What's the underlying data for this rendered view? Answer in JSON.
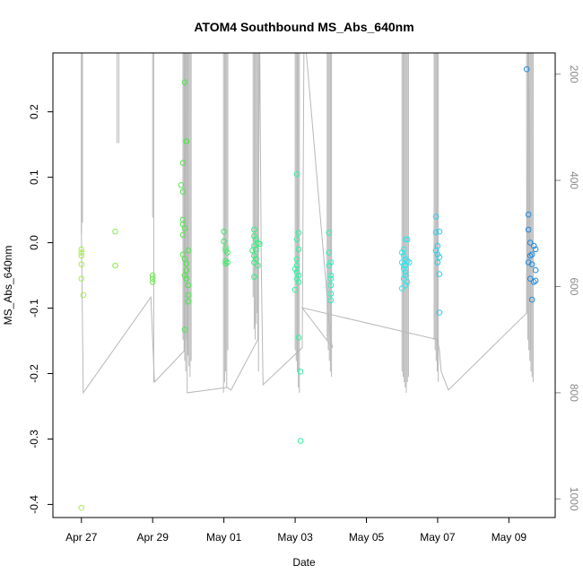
{
  "chart_data": {
    "type": "scatter",
    "title": "ATOM4 Southbound MS_Abs_640nm",
    "xlabel": "Date",
    "ylabel": "MS_Abs_640nm",
    "x_ticks": [
      "Apr 27",
      "Apr 29",
      "May 01",
      "May 03",
      "May 05",
      "May 07",
      "May 09"
    ],
    "x_tick_days": [
      0,
      2,
      4,
      6,
      8,
      10,
      12
    ],
    "xlim_days": [
      -0.8,
      13.3
    ],
    "ylim": [
      -0.42,
      0.29
    ],
    "y_ticks": [
      -0.4,
      -0.3,
      -0.2,
      -0.1,
      0.0,
      0.1,
      0.2
    ],
    "y_tick_labels": [
      "-0.4",
      "-0.3",
      "-0.2",
      "-0.1",
      "0.0",
      "0.1",
      "0.2"
    ],
    "y2_label": "",
    "y2lim": [
      1035,
      160
    ],
    "y2_ticks": [
      200,
      400,
      600,
      800,
      1000
    ],
    "y2_tick_labels": [
      "200",
      "400",
      "600",
      "800",
      "1000"
    ],
    "grid": false,
    "point_colors_by_day": [
      {
        "day": 0,
        "color": "#a6ee4e"
      },
      {
        "day": 3,
        "color": "#4ee34e"
      },
      {
        "day": 6,
        "color": "#2ef5a0"
      },
      {
        "day": 9,
        "color": "#2ee8f0"
      },
      {
        "day": 12.5,
        "color": "#1f8ae0"
      }
    ],
    "track_color": "#b8b8b8",
    "series": [
      {
        "points": [
          [
            0.0,
            -0.01
          ],
          [
            0.0,
            -0.015
          ],
          [
            0.0,
            -0.02
          ],
          [
            0.0,
            -0.033
          ],
          [
            0.0,
            -0.055
          ],
          [
            0.05,
            -0.08
          ],
          [
            0.0,
            -0.405
          ],
          [
            0.95,
            0.017
          ],
          [
            0.95,
            -0.035
          ],
          [
            2.0,
            -0.05
          ],
          [
            2.0,
            -0.055
          ],
          [
            2.0,
            -0.06
          ],
          [
            2.9,
            0.245
          ],
          [
            2.95,
            0.155
          ],
          [
            2.95,
            0.155
          ],
          [
            2.85,
            0.122
          ],
          [
            2.8,
            0.088
          ],
          [
            2.85,
            0.078
          ],
          [
            2.85,
            0.035
          ],
          [
            2.85,
            0.028
          ],
          [
            2.9,
            0.022
          ],
          [
            2.85,
            0.012
          ],
          [
            3.0,
            -0.012
          ],
          [
            2.85,
            -0.018
          ],
          [
            2.9,
            -0.025
          ],
          [
            2.95,
            -0.032
          ],
          [
            2.95,
            -0.042
          ],
          [
            2.9,
            -0.05
          ],
          [
            2.95,
            -0.055
          ],
          [
            3.0,
            -0.065
          ],
          [
            3.0,
            -0.08
          ],
          [
            3.0,
            -0.09
          ],
          [
            2.9,
            -0.133
          ],
          [
            4.0,
            0.017
          ],
          [
            4.0,
            0.002
          ],
          [
            4.05,
            -0.008
          ],
          [
            4.05,
            -0.012
          ],
          [
            4.1,
            -0.015
          ],
          [
            4.05,
            -0.028
          ],
          [
            4.05,
            -0.032
          ],
          [
            4.1,
            -0.03
          ],
          [
            4.85,
            0.02
          ],
          [
            4.85,
            0.01
          ],
          [
            4.9,
            0.005
          ],
          [
            4.95,
            0.0
          ],
          [
            5.0,
            -0.002
          ],
          [
            4.85,
            -0.005
          ],
          [
            4.9,
            -0.01
          ],
          [
            4.8,
            -0.012
          ],
          [
            4.85,
            -0.02
          ],
          [
            4.9,
            -0.025
          ],
          [
            4.85,
            -0.03
          ],
          [
            4.95,
            -0.035
          ],
          [
            4.85,
            -0.052
          ],
          [
            6.05,
            0.105
          ],
          [
            6.1,
            0.015
          ],
          [
            6.05,
            0.005
          ],
          [
            6.1,
            -0.01
          ],
          [
            6.05,
            -0.025
          ],
          [
            6.05,
            -0.035
          ],
          [
            6.0,
            -0.04
          ],
          [
            6.05,
            -0.045
          ],
          [
            6.1,
            -0.05
          ],
          [
            6.05,
            -0.055
          ],
          [
            6.1,
            -0.06
          ],
          [
            6.0,
            -0.072
          ],
          [
            6.1,
            -0.145
          ],
          [
            6.15,
            -0.197
          ],
          [
            6.15,
            -0.303
          ],
          [
            6.95,
            0.015
          ],
          [
            6.95,
            -0.015
          ],
          [
            7.0,
            -0.03
          ],
          [
            6.95,
            -0.035
          ],
          [
            7.0,
            -0.05
          ],
          [
            7.0,
            -0.055
          ],
          [
            7.0,
            -0.065
          ],
          [
            7.0,
            -0.078
          ],
          [
            7.0,
            -0.088
          ],
          [
            9.0,
            -0.015
          ],
          [
            9.05,
            -0.02
          ],
          [
            9.1,
            -0.025
          ],
          [
            9.0,
            -0.03
          ],
          [
            9.05,
            -0.035
          ],
          [
            9.05,
            -0.04
          ],
          [
            9.1,
            -0.045
          ],
          [
            9.1,
            -0.05
          ],
          [
            9.05,
            -0.055
          ],
          [
            9.15,
            -0.06
          ],
          [
            9.1,
            -0.065
          ],
          [
            9.0,
            -0.07
          ],
          [
            9.1,
            0.005
          ],
          [
            9.15,
            0.005
          ],
          [
            9.05,
            -0.01
          ],
          [
            9.15,
            -0.028
          ],
          [
            9.2,
            -0.03
          ],
          [
            9.1,
            -0.035
          ],
          [
            9.95,
            0.04
          ],
          [
            9.95,
            0.016
          ],
          [
            10.05,
            0.017
          ],
          [
            10.0,
            -0.005
          ],
          [
            9.95,
            -0.012
          ],
          [
            10.0,
            -0.018
          ],
          [
            10.05,
            -0.022
          ],
          [
            10.0,
            -0.03
          ],
          [
            10.05,
            -0.048
          ],
          [
            10.05,
            -0.107
          ],
          [
            12.5,
            0.265
          ],
          [
            12.55,
            0.043
          ],
          [
            12.55,
            0.02
          ],
          [
            12.6,
            0.0
          ],
          [
            12.7,
            -0.005
          ],
          [
            12.75,
            -0.01
          ],
          [
            12.65,
            -0.018
          ],
          [
            12.6,
            -0.02
          ],
          [
            12.55,
            -0.03
          ],
          [
            12.65,
            -0.033
          ],
          [
            12.75,
            -0.042
          ],
          [
            12.6,
            -0.055
          ],
          [
            12.7,
            -0.06
          ],
          [
            12.75,
            -0.058
          ],
          [
            12.65,
            -0.087
          ]
        ]
      },
      {
        "axis": "right",
        "track": [
          [
            0.0,
            125
          ],
          [
            0.0,
            500
          ],
          [
            0.05,
            800
          ],
          [
            1.95,
            620
          ],
          [
            2.05,
            780
          ],
          [
            2.9,
            720
          ],
          [
            2.95,
            100
          ],
          [
            2.97,
            800
          ],
          [
            4.1,
            790
          ],
          [
            4.2,
            795
          ],
          [
            4.95,
            700
          ],
          [
            5.0,
            100
          ],
          [
            5.05,
            560
          ],
          [
            5.1,
            785
          ],
          [
            6.2,
            715
          ],
          [
            6.25,
            110
          ],
          [
            7.0,
            700
          ],
          [
            7.05,
            715
          ],
          [
            6.2,
            640
          ],
          [
            10.0,
            700
          ],
          [
            10.05,
            720
          ],
          [
            10.1,
            760
          ],
          [
            10.3,
            795
          ],
          [
            12.5,
            650
          ],
          [
            12.55,
            100
          ],
          [
            12.6,
            720
          ]
        ],
        "spikes": [
          {
            "x": 0.0,
            "bottom": 500
          },
          {
            "x": 0.03,
            "bottom": 480
          },
          {
            "x": 1.0,
            "bottom": 330
          },
          {
            "x": 1.05,
            "bottom": 330
          },
          {
            "x": 2.0,
            "bottom": 470
          },
          {
            "x": 2.03,
            "bottom": 780
          },
          {
            "x": 2.85,
            "bottom": 700
          },
          {
            "x": 2.88,
            "bottom": 720
          },
          {
            "x": 2.9,
            "bottom": 740
          },
          {
            "x": 2.93,
            "bottom": 760
          },
          {
            "x": 2.96,
            "bottom": 700
          },
          {
            "x": 2.99,
            "bottom": 730
          },
          {
            "x": 3.02,
            "bottom": 750
          },
          {
            "x": 3.05,
            "bottom": 770
          },
          {
            "x": 3.08,
            "bottom": 740
          },
          {
            "x": 3.99,
            "bottom": 800
          },
          {
            "x": 4.02,
            "bottom": 780
          },
          {
            "x": 4.05,
            "bottom": 760
          },
          {
            "x": 4.08,
            "bottom": 790
          },
          {
            "x": 4.11,
            "bottom": 720
          },
          {
            "x": 4.82,
            "bottom": 620
          },
          {
            "x": 4.85,
            "bottom": 680
          },
          {
            "x": 4.88,
            "bottom": 700
          },
          {
            "x": 4.91,
            "bottom": 670
          },
          {
            "x": 4.94,
            "bottom": 650
          },
          {
            "x": 4.97,
            "bottom": 760
          },
          {
            "x": 6.0,
            "bottom": 720
          },
          {
            "x": 6.03,
            "bottom": 740
          },
          {
            "x": 6.06,
            "bottom": 760
          },
          {
            "x": 6.09,
            "bottom": 790
          },
          {
            "x": 6.12,
            "bottom": 800
          },
          {
            "x": 6.9,
            "bottom": 700
          },
          {
            "x": 6.93,
            "bottom": 720
          },
          {
            "x": 6.96,
            "bottom": 740
          },
          {
            "x": 6.99,
            "bottom": 760
          },
          {
            "x": 7.02,
            "bottom": 770
          },
          {
            "x": 9.0,
            "bottom": 760
          },
          {
            "x": 9.03,
            "bottom": 770
          },
          {
            "x": 9.06,
            "bottom": 780
          },
          {
            "x": 9.09,
            "bottom": 790
          },
          {
            "x": 9.12,
            "bottom": 800
          },
          {
            "x": 9.15,
            "bottom": 780
          },
          {
            "x": 9.18,
            "bottom": 770
          },
          {
            "x": 9.9,
            "bottom": 700
          },
          {
            "x": 9.93,
            "bottom": 720
          },
          {
            "x": 9.96,
            "bottom": 740
          },
          {
            "x": 9.99,
            "bottom": 760
          },
          {
            "x": 10.02,
            "bottom": 780
          },
          {
            "x": 12.5,
            "bottom": 650
          },
          {
            "x": 12.53,
            "bottom": 700
          },
          {
            "x": 12.56,
            "bottom": 720
          },
          {
            "x": 12.59,
            "bottom": 740
          },
          {
            "x": 12.62,
            "bottom": 760
          },
          {
            "x": 12.65,
            "bottom": 770
          },
          {
            "x": 12.68,
            "bottom": 780
          }
        ]
      }
    ]
  }
}
